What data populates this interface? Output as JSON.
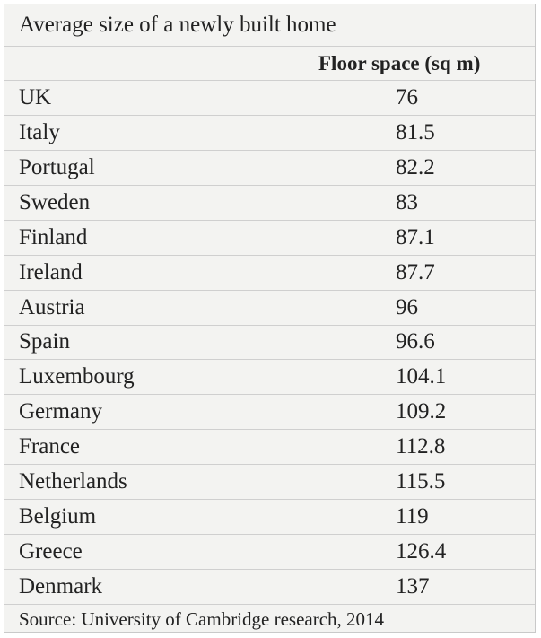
{
  "table": {
    "title": "Average size of a newly built home",
    "header": {
      "value_column": "Floor space (sq m)"
    },
    "rows": [
      [
        "UK",
        76
      ],
      [
        "Italy",
        81.5
      ],
      [
        "Portugal",
        82.2
      ],
      [
        "Sweden",
        83
      ],
      [
        "Finland",
        87.1
      ],
      [
        "Ireland",
        87.7
      ],
      [
        "Austria",
        96
      ],
      [
        "Spain",
        96.6
      ],
      [
        "Luxembourg",
        104.1
      ],
      [
        "Germany",
        109.2
      ],
      [
        "France",
        112.8
      ],
      [
        "Netherlands",
        115.5
      ],
      [
        "Belgium",
        119
      ],
      [
        "Greece",
        126.4
      ],
      [
        "Denmark",
        137
      ]
    ],
    "source": "Source: University of Cambridge research, 2014"
  }
}
